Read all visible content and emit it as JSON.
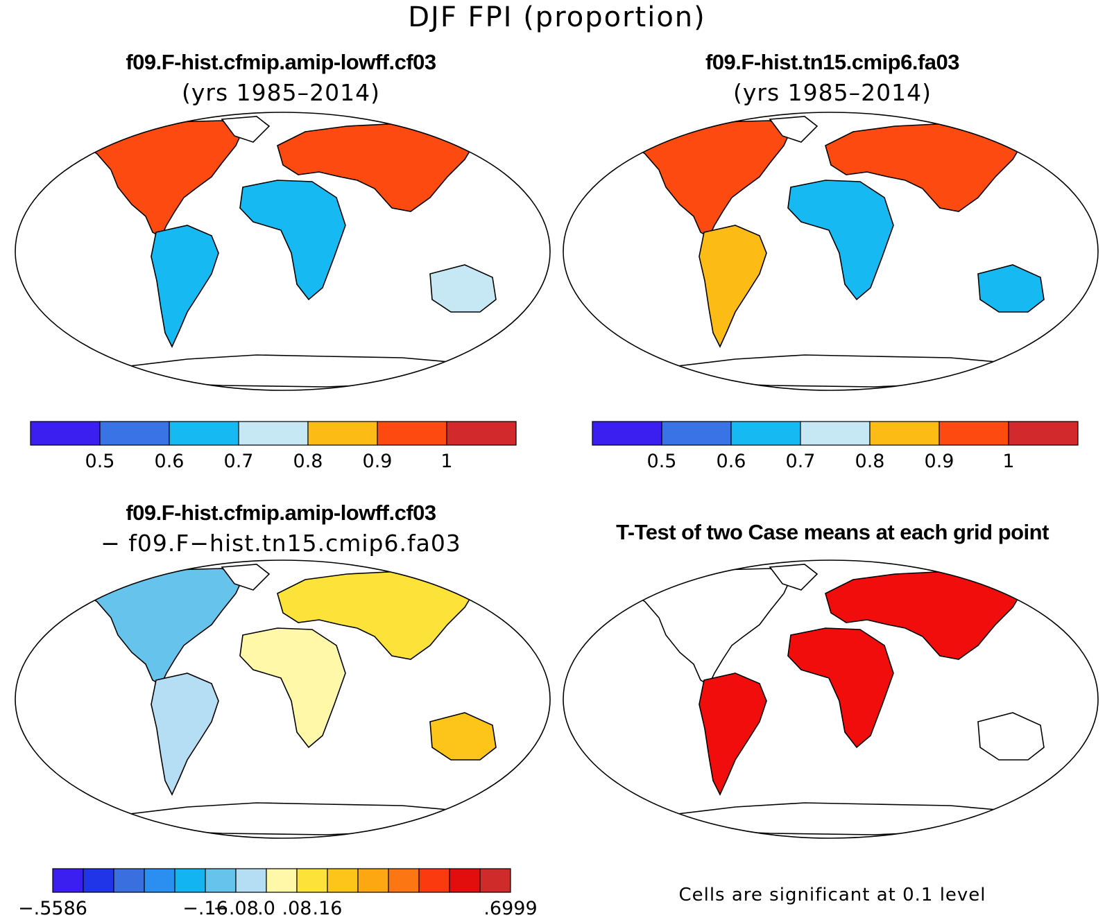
{
  "figure": {
    "title": "DJF FPI (proportion)"
  },
  "panels": [
    {
      "id": "case1",
      "title": "f09.F-hist.cfmip.amip-lowff.cf03",
      "subtitle": "(yrs 1985–2014)",
      "colorbar": {
        "colors": [
          "#3a1ff0",
          "#3a73e6",
          "#17b9f2",
          "#c6e8f5",
          "#fdbb15",
          "#fc4a10",
          "#d22a2c"
        ],
        "tick_labels": [
          "0.5",
          "0.6",
          "0.7",
          "0.8",
          "0.9",
          "1"
        ]
      }
    },
    {
      "id": "case2",
      "title": "f09.F-hist.tn15.cmip6.fa03",
      "subtitle": "(yrs 1985–2014)",
      "colorbar": {
        "colors": [
          "#3a1ff0",
          "#3a73e6",
          "#17b9f2",
          "#c6e8f5",
          "#fdbb15",
          "#fc4a10",
          "#d22a2c"
        ],
        "tick_labels": [
          "0.5",
          "0.6",
          "0.7",
          "0.8",
          "0.9",
          "1"
        ]
      }
    },
    {
      "id": "diff",
      "title": "f09.F-hist.cfmip.amip-lowff.cf03",
      "subtitle": "− f09.F−hist.tn15.cmip6.fa03",
      "colorbar": {
        "colors": [
          "#3a1ff0",
          "#2035e8",
          "#3a6fe0",
          "#2a8ff0",
          "#12b4f2",
          "#66c4ec",
          "#b5ddf3",
          "#fff8a8",
          "#fde23a",
          "#fdc51a",
          "#fda712",
          "#fc7614",
          "#fc3a10",
          "#e20d0d",
          "#cf2b2b"
        ],
        "tick_labels": [
          "−.5586",
          "−.16",
          "−.08",
          ".0",
          ".08",
          ".16",
          ".6999"
        ]
      }
    },
    {
      "id": "ttest",
      "title": "T-Test of two Case means at each grid point",
      "subtitle": "",
      "significance_color": "#f20d0d",
      "note": "Cells are significant at 0.1 level"
    }
  ]
}
